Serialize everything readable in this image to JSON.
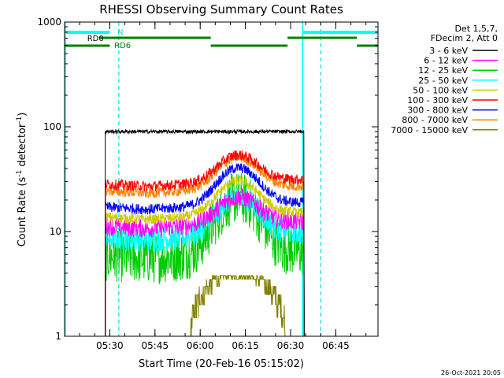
{
  "chart_data": {
    "type": "line",
    "title": "RHESSI Observing Summary Count Rates",
    "xlabel": "Start Time (20-Feb-16 05:15:02)",
    "ylabel_parts": [
      "Count Rate (s",
      "-1",
      " detector",
      "-1",
      ")"
    ],
    "y_scale": "log",
    "ylim": [
      1,
      1000
    ],
    "xlim_minutes": [
      0,
      104
    ],
    "y_ticks": [
      {
        "value": 1,
        "label": "1"
      },
      {
        "value": 10,
        "label": "10"
      },
      {
        "value": 100,
        "label": "100"
      },
      {
        "value": 1000,
        "label": "1000"
      }
    ],
    "x_ticks": [
      {
        "minute": 15,
        "label": "05:30"
      },
      {
        "minute": 30,
        "label": "05:45"
      },
      {
        "minute": 45,
        "label": "06:00"
      },
      {
        "minute": 60,
        "label": "06:15"
      },
      {
        "minute": 75,
        "label": "06:30"
      },
      {
        "minute": 90,
        "label": "06:45"
      }
    ],
    "legend_header": [
      "Det 1,5,7,",
      "FDecim 2, Att 0"
    ],
    "series": [
      {
        "name": "3 - 6 keV",
        "color": "#000000",
        "base": 90,
        "peak": 90,
        "noise": 0.04
      },
      {
        "name": "6 - 12 keV",
        "color": "#ff00ff",
        "base": 11.5,
        "peak": 21,
        "noise": 0.09
      },
      {
        "name": "12 - 25 keV",
        "color": "#00cc00",
        "base": 6,
        "peak": 21,
        "noise": 0.25
      },
      {
        "name": "25 - 50 keV",
        "color": "#00ffff",
        "base": 9,
        "peak": 21,
        "noise": 0.12
      },
      {
        "name": "50 - 100 keV",
        "color": "#cccc00",
        "base": 14,
        "peak": 30,
        "noise": 0.05
      },
      {
        "name": "100 - 300 keV",
        "color": "#ff0000",
        "base": 29,
        "peak": 53,
        "noise": 0.05
      },
      {
        "name": "300 - 800 keV",
        "color": "#0000ff",
        "base": 17.5,
        "peak": 40,
        "noise": 0.05
      },
      {
        "name": "800 - 7000 keV",
        "color": "#ff8000",
        "base": 25,
        "peak": 50,
        "noise": 0.05
      },
      {
        "name": "7000 - 15000 keV",
        "color": "#808000",
        "base": 1,
        "peak": 3.8,
        "noise": 0.3
      }
    ],
    "data_interval_minutes": [
      13.5,
      79.5
    ],
    "peak_minute": 57.5,
    "annotations": {
      "n_label": "N",
      "rd0_label": "RD0",
      "rd6_label": "RD6",
      "cyan_bars_minutes": [
        [
          0,
          15
        ],
        [
          79,
          104
        ]
      ],
      "green_bars_upper_minutes": [
        [
          11.5,
          48.5
        ],
        [
          74,
          97
        ]
      ],
      "green_bars_lower_minutes": [
        [
          0,
          15
        ],
        [
          48.5,
          74
        ],
        [
          97,
          104
        ]
      ],
      "cyan_dashed_minutes": [
        18,
        85
      ],
      "cyan_solid_minutes": [
        79
      ]
    },
    "grid": false,
    "legend_placement": "right",
    "footer_date": "26-Oct-2021 20:05"
  }
}
